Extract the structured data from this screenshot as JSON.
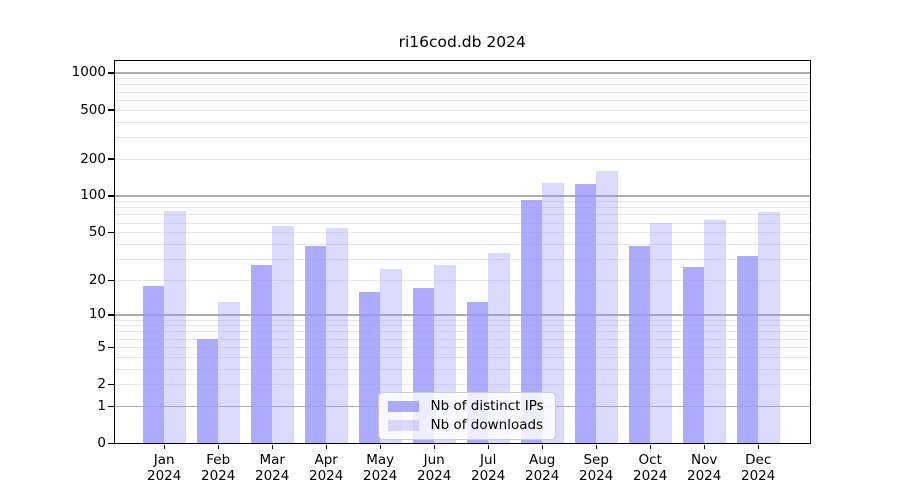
{
  "title": "ri16cod.db 2024",
  "chart_data": {
    "type": "bar",
    "title": "ri16cod.db 2024",
    "categories": [
      "Jan 2024",
      "Feb 2024",
      "Mar 2024",
      "Apr 2024",
      "May 2024",
      "Jun 2024",
      "Jul 2024",
      "Aug 2024",
      "Sep 2024",
      "Oct 2024",
      "Nov 2024",
      "Dec 2024"
    ],
    "series": [
      {
        "name": "Nb of distinct IPs",
        "color": "rgba(150,150,255,0.80)",
        "values": [
          18,
          6,
          27,
          39,
          16,
          17,
          13,
          93,
          125,
          39,
          26,
          32
        ]
      },
      {
        "name": "Nb of downloads",
        "color": "rgba(150,150,255,0.35)",
        "values": [
          75,
          13,
          57,
          55,
          25,
          27,
          34,
          127,
          160,
          60,
          63,
          74
        ]
      }
    ],
    "xlabel": "",
    "ylabel": "",
    "yscale": "log1p",
    "yticks": [
      0,
      1,
      2,
      5,
      10,
      20,
      50,
      100,
      200,
      500,
      1000
    ],
    "ylim": [
      0,
      1286
    ],
    "grid": true,
    "grid_major_at": [
      1,
      10,
      100,
      1000
    ],
    "grid_minor_at": [
      2,
      3,
      4,
      5,
      6,
      7,
      8,
      9,
      20,
      30,
      40,
      50,
      60,
      70,
      80,
      90,
      200,
      300,
      400,
      500,
      600,
      700,
      800,
      900
    ],
    "legend_position": "lower center",
    "bar_alpha_note": "semi-transparent bars, gridlines visible through"
  }
}
